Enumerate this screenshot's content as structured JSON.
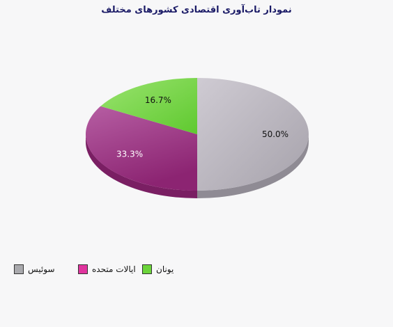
{
  "chart_data": {
    "type": "pie",
    "title": "نمودار تاب‌آوری اقتصادی کشورهای مختلف",
    "slices": [
      {
        "name": "سوئیس",
        "value": 50.0,
        "label": "50.0%",
        "color": "#b3afb8"
      },
      {
        "name": "ایالات متحده",
        "value": 33.3,
        "label": "33.3%",
        "color": "#a23e8a"
      },
      {
        "name": "یونان",
        "value": 16.7,
        "label": "16.7%",
        "color": "#7fd64f"
      }
    ],
    "legend": {
      "placement": "bottom-left",
      "items": [
        {
          "label": "سوئیس",
          "color": "#a9a9ad"
        },
        {
          "label": "ایالات متحده",
          "color": "#e0349e"
        },
        {
          "label": "یونان",
          "color": "#6bd43a"
        }
      ]
    }
  }
}
